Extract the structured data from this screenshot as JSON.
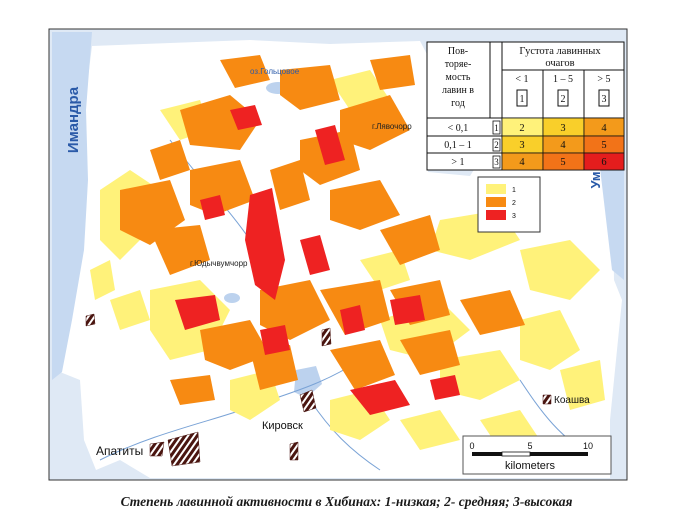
{
  "colors": {
    "water": "#dfe9f5",
    "lake": "#bcd2ee",
    "land": "#ffffff",
    "level1": "#fff27a",
    "level2": "#f78a12",
    "level3": "#ee2222",
    "hatch": "#4a1510",
    "blue_label": "#2a5aa8",
    "table_cell_2": "#fff27a",
    "table_cell_3": "#f9cf2a",
    "table_cell_4": "#f39a1b",
    "table_cell_5": "#f27318",
    "table_cell_6": "#e41d1d"
  },
  "map_labels": {
    "imandra": "Имандра",
    "umbozero": "Ум",
    "lake_goltsovoe": "оз.Гольцовое",
    "lyavochorr": "г.Лявочорр",
    "yudychvumchorr": "г.Юдычвумчорр",
    "kirovsk": "Кировск",
    "apatity": "Апатиты",
    "koashva": "Коашва"
  },
  "legend": {
    "items": [
      {
        "label": "1",
        "color_key": "level1"
      },
      {
        "label": "2",
        "color_key": "level2"
      },
      {
        "label": "3",
        "color_key": "level3"
      }
    ]
  },
  "scale_bar": {
    "ticks": [
      "0",
      "5",
      "10"
    ],
    "unit": "kilometers"
  },
  "table": {
    "row_header": "Повто­ряе­мость лавин в год",
    "col_header": "Густота лавинных очагов",
    "col_labels": [
      "< 1",
      "1 – 5",
      "> 5"
    ],
    "col_codes": [
      "1",
      "2",
      "3"
    ],
    "row_labels": [
      "< 0,1",
      "0,1 – 1",
      "> 1"
    ],
    "row_codes": [
      "1",
      "2",
      "3"
    ],
    "cells": [
      [
        "2",
        "3",
        "4"
      ],
      [
        "3",
        "4",
        "5"
      ],
      [
        "4",
        "5",
        "6"
      ]
    ]
  },
  "caption": "Степень лавинной активности в Хибинах: 1-низкая; 2- средняя; 3-высокая"
}
